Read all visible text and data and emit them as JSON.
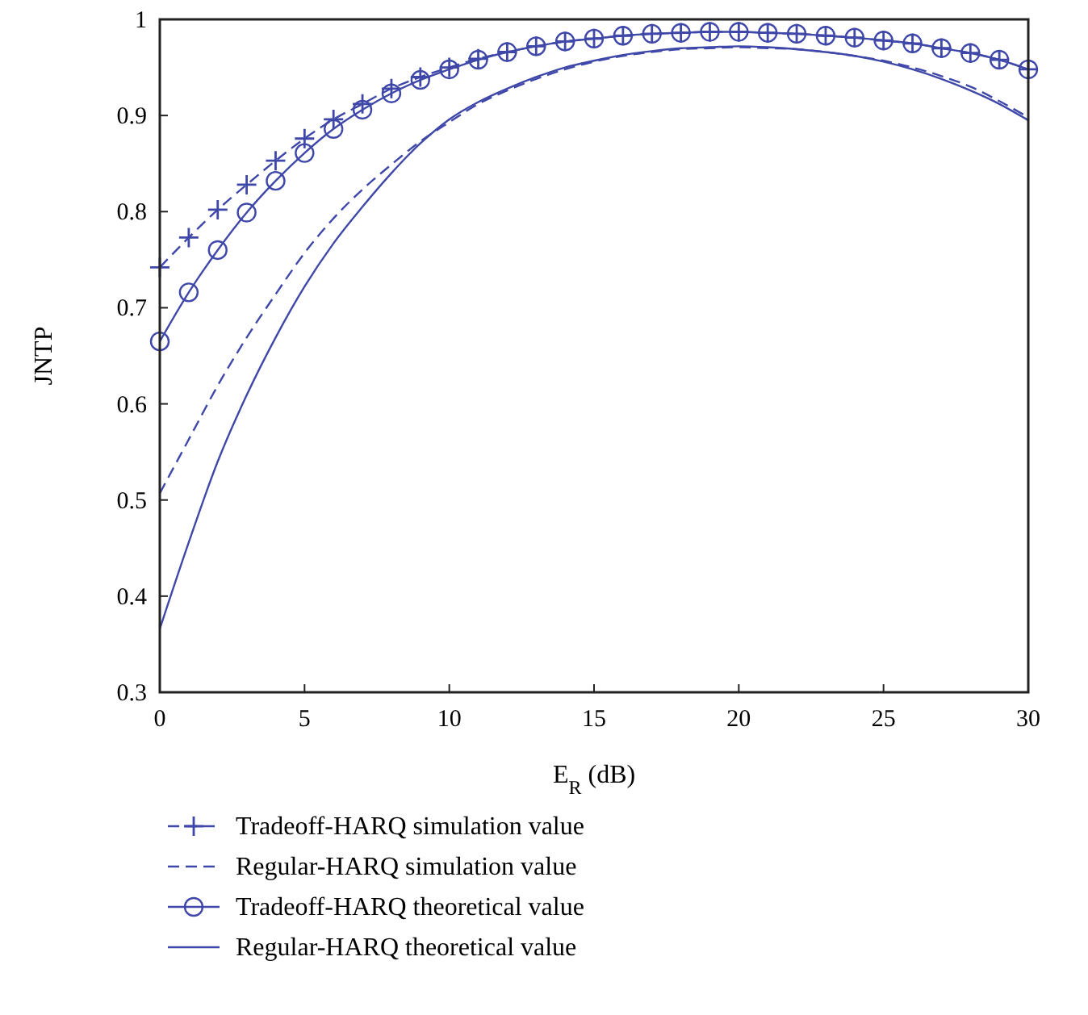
{
  "chart_data": {
    "type": "line",
    "xlabel": "E$_{R}$ (dB)",
    "ylabel": "JNTP",
    "x": [
      0,
      1,
      2,
      3,
      4,
      5,
      6,
      7,
      8,
      9,
      10,
      11,
      12,
      13,
      14,
      15,
      16,
      17,
      18,
      19,
      20,
      21,
      22,
      23,
      24,
      25,
      26,
      27,
      28,
      29,
      30
    ],
    "series": [
      {
        "name": "Tradeoff-HARQ simulation value",
        "color": "#3f48a8",
        "line_style": "dashed",
        "marker": "cross",
        "values": [
          0.742,
          0.773,
          0.802,
          0.828,
          0.853,
          0.876,
          0.896,
          0.912,
          0.928,
          0.94,
          0.95,
          0.959,
          0.966,
          0.972,
          0.977,
          0.98,
          0.983,
          0.985,
          0.986,
          0.987,
          0.987,
          0.986,
          0.985,
          0.983,
          0.981,
          0.978,
          0.975,
          0.97,
          0.965,
          0.958,
          0.948
        ]
      },
      {
        "name": "Regular-HARQ simulation value",
        "color": "#3f48a8",
        "line_style": "dashed",
        "marker": "none",
        "values": [
          0.507,
          0.563,
          0.619,
          0.669,
          0.714,
          0.757,
          0.793,
          0.823,
          0.849,
          0.873,
          0.893,
          0.912,
          0.926,
          0.938,
          0.948,
          0.956,
          0.962,
          0.966,
          0.969,
          0.97,
          0.971,
          0.97,
          0.969,
          0.966,
          0.962,
          0.957,
          0.95,
          0.941,
          0.93,
          0.915,
          0.898
        ]
      },
      {
        "name": "Tradeoff-HARQ theoretical value",
        "color": "#3f48a8",
        "line_style": "solid",
        "marker": "circle",
        "values": [
          0.665,
          0.716,
          0.76,
          0.799,
          0.832,
          0.861,
          0.886,
          0.906,
          0.923,
          0.937,
          0.948,
          0.958,
          0.966,
          0.972,
          0.977,
          0.98,
          0.983,
          0.985,
          0.986,
          0.987,
          0.987,
          0.986,
          0.985,
          0.983,
          0.981,
          0.978,
          0.975,
          0.97,
          0.965,
          0.958,
          0.948
        ]
      },
      {
        "name": "Regular-HARQ theoretical value",
        "color": "#3f48a8",
        "line_style": "solid",
        "marker": "none",
        "values": [
          0.366,
          0.456,
          0.54,
          0.609,
          0.669,
          0.722,
          0.767,
          0.805,
          0.84,
          0.871,
          0.896,
          0.914,
          0.928,
          0.94,
          0.95,
          0.957,
          0.963,
          0.967,
          0.97,
          0.971,
          0.972,
          0.971,
          0.969,
          0.966,
          0.962,
          0.956,
          0.948,
          0.938,
          0.926,
          0.912,
          0.895
        ]
      }
    ],
    "xlim": [
      0,
      30
    ],
    "ylim": [
      0.3,
      1
    ],
    "xticks": [
      0,
      5,
      10,
      15,
      20,
      25,
      30
    ],
    "yticks": [
      0.3,
      0.4,
      0.5,
      0.6,
      0.7,
      0.8,
      0.9,
      {
        "value": 1,
        "label": "1"
      }
    ],
    "grid": false,
    "legend": "bottom"
  }
}
